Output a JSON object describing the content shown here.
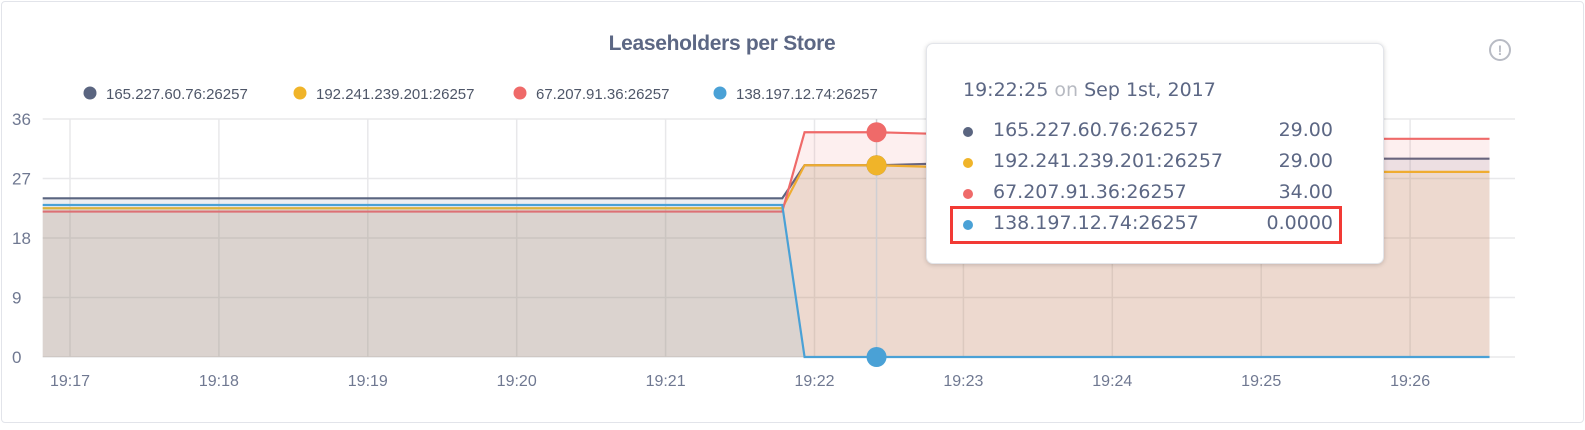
{
  "chart_data": {
    "type": "area",
    "title": "Leaseholders per Store",
    "xlabel": "",
    "ylabel": "",
    "x_ticks": [
      "19:17",
      "19:18",
      "19:19",
      "19:20",
      "19:21",
      "19:22",
      "19:23",
      "19:24",
      "19:25",
      "19:26"
    ],
    "y_ticks": [
      "0",
      "9",
      "18",
      "27",
      "36"
    ],
    "ylim": [
      0,
      36
    ],
    "xlim": [
      "19:16:49",
      "19:26:32"
    ],
    "grid": true,
    "legend_position": "top",
    "x": [
      "19:16:49",
      "19:21:47",
      "19:21:56",
      "19:22:25",
      "19:24:00",
      "19:26:32"
    ],
    "series": [
      {
        "name": "165.227.60.76:26257",
        "color": "#5a6580",
        "values": [
          24,
          24,
          29,
          29,
          30,
          30
        ]
      },
      {
        "name": "192.241.239.201:26257",
        "color": "#f0b429",
        "values": [
          22.5,
          22.5,
          29,
          29,
          28,
          28
        ]
      },
      {
        "name": "67.207.91.36:26257",
        "color": "#ef6a69",
        "values": [
          22,
          22,
          34,
          34,
          33,
          33
        ]
      },
      {
        "name": "138.197.12.74:26257",
        "color": "#4aa1d6",
        "values": [
          23,
          23,
          0,
          0,
          0,
          0
        ]
      }
    ]
  },
  "tooltip": {
    "time": "19:22:25",
    "on": "on",
    "date": "Sep 1st, 2017",
    "rows": [
      {
        "name": "165.227.60.76:26257",
        "value": "29.00"
      },
      {
        "name": "192.241.239.201:26257",
        "value": "29.00"
      },
      {
        "name": "67.207.91.36:26257",
        "value": "34.00"
      },
      {
        "name": "138.197.12.74:26257",
        "value": "0.0000"
      }
    ],
    "highlight_color": "#f23a35"
  },
  "info_icon": "info-icon"
}
